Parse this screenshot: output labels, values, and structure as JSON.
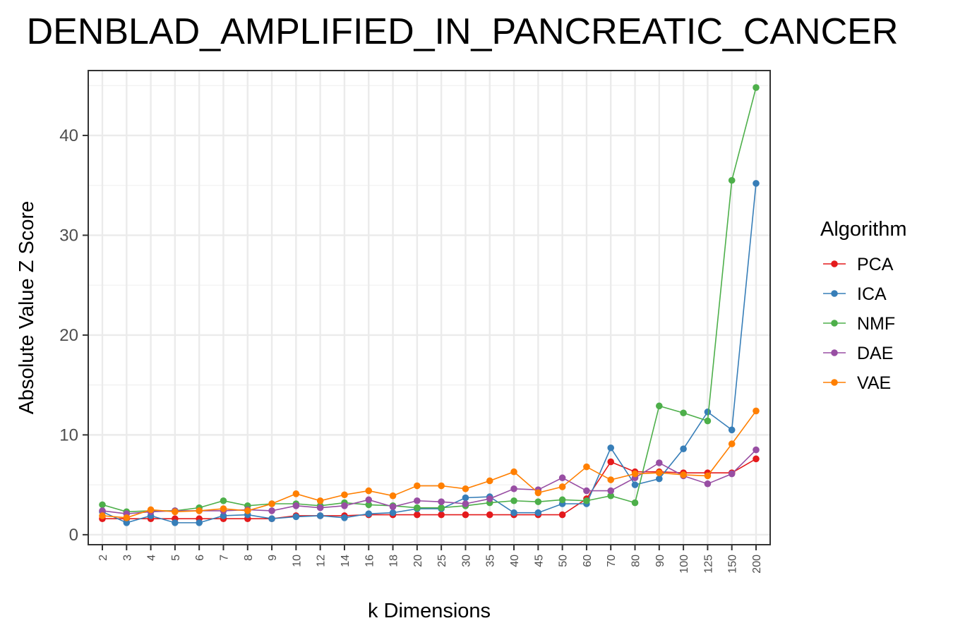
{
  "chart_data": {
    "type": "line",
    "title": "DENBLAD_AMPLIFIED_IN_PANCREATIC_CANCER",
    "xlabel": "k Dimensions",
    "ylabel": "Absolute Value Z Score",
    "ylim": [
      -1,
      46.5
    ],
    "yticks": [
      0,
      10,
      20,
      30,
      40
    ],
    "grid": true,
    "legend_title": "Algorithm",
    "legend_position": "right",
    "categories": [
      "2",
      "3",
      "4",
      "5",
      "6",
      "7",
      "8",
      "9",
      "10",
      "12",
      "14",
      "16",
      "18",
      "20",
      "25",
      "30",
      "35",
      "40",
      "45",
      "50",
      "60",
      "70",
      "80",
      "90",
      "100",
      "125",
      "150",
      "200"
    ],
    "series": [
      {
        "name": "PCA",
        "color": "#e41a1c",
        "values": [
          1.6,
          1.6,
          1.6,
          1.6,
          1.6,
          1.6,
          1.6,
          1.6,
          1.9,
          1.9,
          1.9,
          2.0,
          2.0,
          2.0,
          2.0,
          2.0,
          2.0,
          2.0,
          2.0,
          2.0,
          3.6,
          7.3,
          6.3,
          6.3,
          6.2,
          6.2,
          6.2,
          7.6
        ]
      },
      {
        "name": "ICA",
        "color": "#377eb8",
        "values": [
          2.3,
          1.2,
          1.9,
          1.2,
          1.2,
          1.9,
          2.0,
          1.6,
          1.8,
          1.9,
          1.7,
          2.1,
          2.2,
          2.6,
          2.6,
          3.7,
          3.8,
          2.2,
          2.2,
          3.1,
          3.1,
          8.7,
          5.0,
          5.6,
          8.6,
          12.3,
          10.5,
          35.2
        ]
      },
      {
        "name": "NMF",
        "color": "#4daf4a",
        "values": [
          3.0,
          2.3,
          2.4,
          2.4,
          2.7,
          3.4,
          2.9,
          3.1,
          3.1,
          2.9,
          3.2,
          3.0,
          2.9,
          2.7,
          2.7,
          2.9,
          3.2,
          3.4,
          3.3,
          3.5,
          3.4,
          3.9,
          3.2,
          12.9,
          12.2,
          11.4,
          35.5,
          44.8
        ]
      },
      {
        "name": "DAE",
        "color": "#984ea3",
        "values": [
          2.4,
          2.1,
          2.3,
          2.4,
          2.4,
          2.4,
          2.5,
          2.4,
          2.9,
          2.7,
          2.9,
          3.5,
          2.8,
          3.4,
          3.3,
          3.1,
          3.6,
          4.6,
          4.5,
          5.7,
          4.4,
          4.4,
          5.7,
          7.2,
          5.9,
          5.1,
          6.1,
          8.5
        ]
      },
      {
        "name": "VAE",
        "color": "#ff7f00",
        "values": [
          1.9,
          1.7,
          2.5,
          2.3,
          2.4,
          2.6,
          2.4,
          3.1,
          4.1,
          3.4,
          4.0,
          4.4,
          3.9,
          4.9,
          4.9,
          4.6,
          5.4,
          6.3,
          4.2,
          4.8,
          6.8,
          5.5,
          6.1,
          6.2,
          6.0,
          5.9,
          9.1,
          12.4
        ]
      }
    ]
  }
}
